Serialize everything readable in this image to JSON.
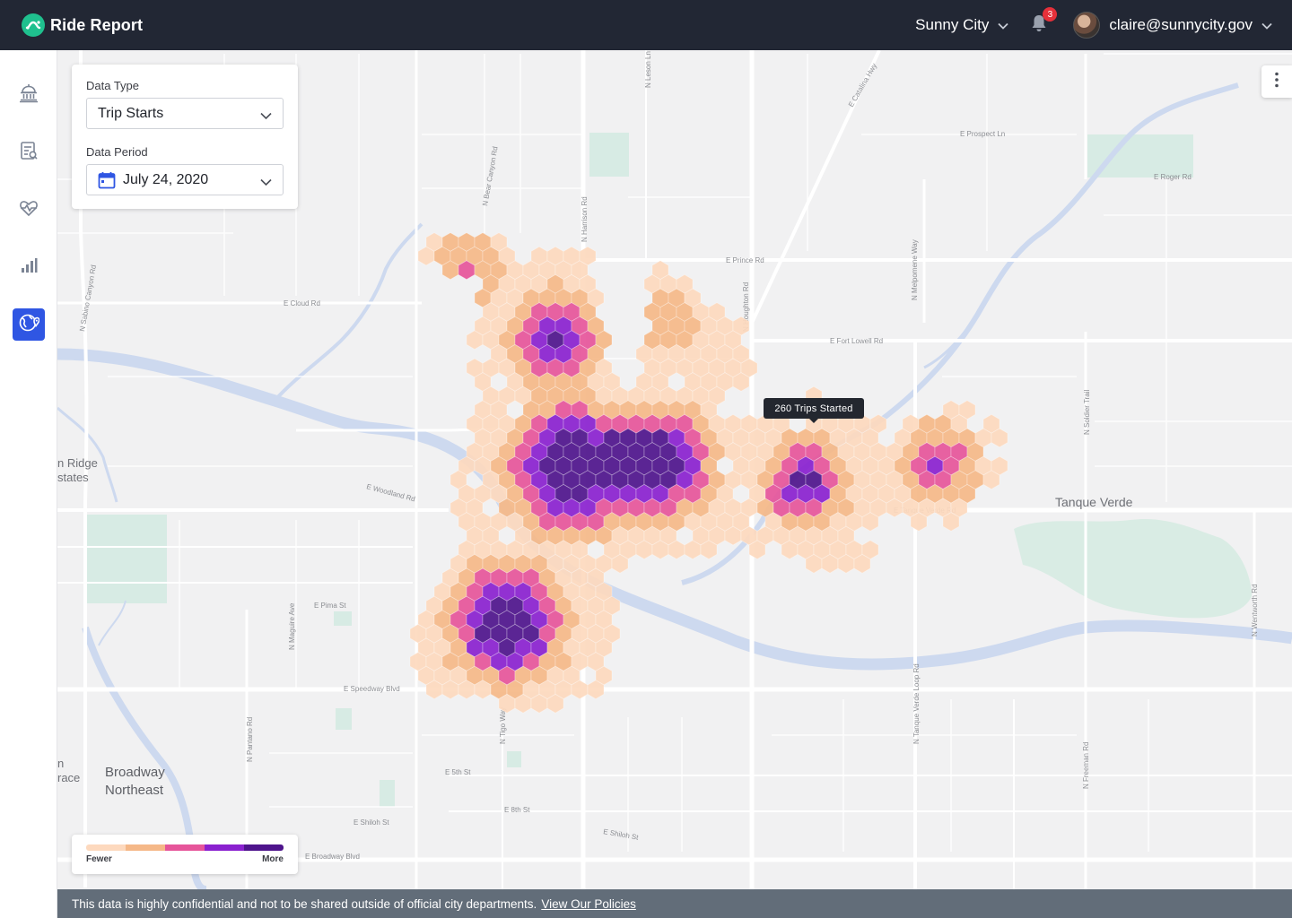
{
  "app": {
    "name": "Ride Report"
  },
  "header": {
    "city": "Sunny City",
    "notifications_count": "3",
    "user_email": "claire@sunnycity.gov"
  },
  "sidebar": {
    "items": [
      {
        "name": "city-hall-icon",
        "active": false
      },
      {
        "name": "report-icon",
        "active": false
      },
      {
        "name": "health-icon",
        "active": false
      },
      {
        "name": "bar-chart-icon",
        "active": false
      },
      {
        "name": "map-pin-icon",
        "active": true
      }
    ]
  },
  "filters": {
    "data_type_label": "Data Type",
    "data_type_value": "Trip Starts",
    "data_period_label": "Data Period",
    "data_period_value": "July 24, 2020"
  },
  "tooltip": {
    "text": "260 Trips Started"
  },
  "legend": {
    "colors": [
      "#fdd9be",
      "#f5b888",
      "#e6559a",
      "#8a21cf",
      "#4e148c"
    ],
    "low_label": "Fewer",
    "high_label": "More"
  },
  "map": {
    "place_labels": [
      "Tanque Verde",
      "Broadway",
      "Northeast",
      "n Ridge",
      "states",
      "n",
      "race"
    ],
    "street_labels": [
      "E Prospect Ln",
      "E Prince Rd",
      "E Cloud Rd",
      "E Fort Lowell Rd",
      "E Woodland Rd",
      "E Pima St",
      "E Speedway Blvd",
      "E 5th St",
      "E 8th St",
      "E Shiloh St",
      "E Broadway Blvd",
      "N Harrison Rd",
      "N Houghton Rd",
      "N Sabino Canyon Rd",
      "N Bear Canyon Rd",
      "N Tanque Verde Loop Rd",
      "N Soldier Trail",
      "N Wentworth Rd",
      "N Pantano Rd",
      "N Melpomene Way",
      "E Roger Rd",
      "E Catalina Hwy",
      "N Freeman Rd",
      "N Tigo Way",
      "N Maguire Ave",
      "N Leson Ln",
      "E Tanque Verde Rd",
      "E Shiloh St"
    ]
  },
  "footer": {
    "notice": "This data is highly confidential and not to be shared outside of official city departments.",
    "link": "View Our Policies"
  }
}
